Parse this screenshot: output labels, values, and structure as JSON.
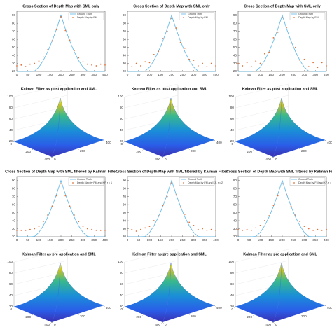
{
  "chart_data": [
    {
      "type": "line",
      "title": "Cross Section of Depth Map with SML only",
      "x": [
        0,
        20,
        40,
        60,
        80,
        100,
        120,
        140,
        160,
        180,
        200,
        220,
        240,
        260,
        280,
        300,
        320,
        340,
        360,
        380,
        400
      ],
      "xlim": [
        0,
        400
      ],
      "xticks": [
        0,
        50,
        100,
        150,
        200,
        250,
        300,
        350,
        400
      ],
      "ylim": [
        20,
        95
      ],
      "yticks": [
        20,
        30,
        40,
        50,
        60,
        70,
        80,
        90
      ],
      "legend": "upper right",
      "series": [
        {
          "name": "Ground Truth",
          "color": "#5ab4e6",
          "style": "line",
          "values": [
            20,
            20,
            20,
            20,
            20.4,
            25.3,
            33.7,
            44.6,
            57.8,
            73,
            90,
            73,
            57.8,
            44.6,
            33.7,
            25.3,
            20.4,
            20,
            20,
            20,
            20
          ]
        },
        {
          "name": "Depth Map by FM",
          "color": "#e0703a",
          "style": "dots",
          "values": [
            27,
            28,
            26,
            29,
            30,
            33,
            38,
            47,
            58,
            72,
            88,
            71,
            59,
            46,
            37,
            32,
            29,
            28,
            27,
            29,
            28
          ]
        }
      ]
    },
    {
      "type": "line",
      "title": "Cross Section of Depth Map with SML only",
      "x": [
        0,
        20,
        40,
        60,
        80,
        100,
        120,
        140,
        160,
        180,
        200,
        220,
        240,
        260,
        280,
        300,
        320,
        340,
        360,
        380,
        400
      ],
      "xlim": [
        0,
        400
      ],
      "xticks": [
        0,
        50,
        100,
        150,
        200,
        250,
        300,
        350,
        400
      ],
      "ylim": [
        20,
        95
      ],
      "yticks": [
        20,
        30,
        40,
        50,
        60,
        70,
        80,
        90
      ],
      "legend": "upper right",
      "series": [
        {
          "name": "Ground Truth",
          "color": "#5ab4e6",
          "style": "line",
          "values": [
            20,
            20,
            20,
            20,
            20.4,
            25.3,
            33.7,
            44.6,
            57.8,
            73,
            90,
            73,
            57.8,
            44.6,
            33.7,
            25.3,
            20.4,
            20,
            20,
            20,
            20
          ]
        },
        {
          "name": "Depth Map by FM",
          "color": "#e0703a",
          "style": "dots",
          "values": [
            29,
            26,
            30,
            27,
            32,
            31,
            41,
            45,
            61,
            70,
            86,
            74,
            56,
            49,
            35,
            34,
            27,
            30,
            26,
            30,
            27
          ]
        }
      ]
    },
    {
      "type": "line",
      "title": "Cross Section of Depth Map with SML only",
      "x": [
        0,
        20,
        40,
        60,
        80,
        100,
        120,
        140,
        160,
        180,
        200,
        220,
        240,
        260,
        280,
        300,
        320,
        340,
        360,
        380,
        400
      ],
      "xlim": [
        0,
        400
      ],
      "xticks": [
        0,
        50,
        100,
        150,
        200,
        250,
        300,
        350,
        400
      ],
      "ylim": [
        20,
        95
      ],
      "yticks": [
        20,
        30,
        40,
        50,
        60,
        70,
        80,
        90
      ],
      "legend": "upper right",
      "series": [
        {
          "name": "Ground Truth",
          "color": "#5ab4e6",
          "style": "line",
          "values": [
            20,
            20,
            20,
            20,
            20.4,
            25.3,
            33.7,
            44.6,
            57.8,
            73,
            90,
            73,
            57.8,
            44.6,
            33.7,
            25.3,
            20.4,
            20,
            20,
            20,
            20
          ]
        },
        {
          "name": "Depth Map by FM",
          "color": "#e0703a",
          "style": "dots",
          "values": [
            30,
            27,
            31,
            26,
            33,
            30,
            42,
            44,
            62,
            69,
            87,
            75,
            55,
            50,
            34,
            35,
            26,
            31,
            25,
            31,
            27
          ]
        }
      ]
    },
    {
      "type": "surface",
      "title": "Kalman Filter as post application and SML",
      "zlim": [
        20,
        100
      ],
      "zticks": [
        20,
        40,
        60,
        80,
        100
      ],
      "xticks": [
        0,
        200,
        400
      ],
      "yticks": [
        0,
        200,
        400
      ]
    },
    {
      "type": "surface",
      "title": "Kalman Filter as post application and SML",
      "zlim": [
        20,
        100
      ],
      "zticks": [
        20,
        40,
        60,
        80,
        100
      ],
      "xticks": [
        0,
        200,
        400
      ],
      "yticks": [
        0,
        200,
        400
      ]
    },
    {
      "type": "surface",
      "title": "Kalman Filter as post application and SML",
      "zlim": [
        20,
        100
      ],
      "zticks": [
        20,
        40,
        60,
        80,
        100
      ],
      "xticks": [
        0,
        200,
        400
      ],
      "yticks": [
        0,
        200,
        400
      ]
    },
    {
      "type": "line",
      "title": "Cross Section of Depth Map with SML filtered by Kalman Filter",
      "x": [
        0,
        20,
        40,
        60,
        80,
        100,
        120,
        140,
        160,
        180,
        200,
        220,
        240,
        260,
        280,
        300,
        320,
        340,
        360,
        380,
        400
      ],
      "xlim": [
        0,
        400
      ],
      "xticks": [
        0,
        50,
        100,
        150,
        200,
        250,
        300,
        350,
        400
      ],
      "ylim": [
        20,
        95
      ],
      "yticks": [
        20,
        30,
        40,
        50,
        60,
        70,
        80,
        90
      ],
      "legend": "upper right",
      "series": [
        {
          "name": "Ground Truth",
          "color": "#5ab4e6",
          "style": "line",
          "values": [
            20,
            20,
            20,
            20,
            20.4,
            25.3,
            33.7,
            44.6,
            57.8,
            73,
            90,
            73,
            57.8,
            44.6,
            33.7,
            25.3,
            20.4,
            20,
            20,
            20,
            20
          ]
        },
        {
          "name": "Depth Map by FM and KF, r = 1",
          "color": "#e0703a",
          "style": "dots",
          "values": [
            28,
            28,
            28,
            29,
            30,
            33,
            39,
            47,
            58,
            71,
            86,
            71,
            58,
            47,
            39,
            33,
            30,
            29,
            28,
            28,
            28
          ]
        }
      ]
    },
    {
      "type": "line",
      "title": "Cross Section of Depth Map with SML filtered by Kalman Filter",
      "x": [
        0,
        20,
        40,
        60,
        80,
        100,
        120,
        140,
        160,
        180,
        200,
        220,
        240,
        260,
        280,
        300,
        320,
        340,
        360,
        380,
        400
      ],
      "xlim": [
        0,
        400
      ],
      "xticks": [
        0,
        50,
        100,
        150,
        200,
        250,
        300,
        350,
        400
      ],
      "ylim": [
        20,
        95
      ],
      "yticks": [
        20,
        30,
        40,
        50,
        60,
        70,
        80,
        90
      ],
      "legend": "upper right",
      "series": [
        {
          "name": "Ground Truth",
          "color": "#5ab4e6",
          "style": "line",
          "values": [
            20,
            20,
            20,
            20,
            20.4,
            25.3,
            33.7,
            44.6,
            57.8,
            73,
            90,
            73,
            57.8,
            44.6,
            33.7,
            25.3,
            20.4,
            20,
            20,
            20,
            20
          ]
        },
        {
          "name": "Depth Map by FM and KF, r = 2",
          "color": "#e0703a",
          "style": "dots",
          "values": [
            28,
            29,
            27,
            29,
            31,
            33,
            40,
            46,
            59,
            70,
            87,
            72,
            57,
            48,
            38,
            34,
            29,
            30,
            28,
            29,
            28
          ]
        }
      ]
    },
    {
      "type": "line",
      "title": "Cross Section of Depth Map with SML filtered by Kalman Filter",
      "x": [
        0,
        20,
        40,
        60,
        80,
        100,
        120,
        140,
        160,
        180,
        200,
        220,
        240,
        260,
        280,
        300,
        320,
        340,
        360,
        380,
        400
      ],
      "xlim": [
        0,
        400
      ],
      "xticks": [
        0,
        50,
        100,
        150,
        200,
        250,
        300,
        350,
        400
      ],
      "ylim": [
        20,
        95
      ],
      "yticks": [
        20,
        30,
        40,
        50,
        60,
        70,
        80,
        90
      ],
      "legend": "upper right",
      "series": [
        {
          "name": "Ground Truth",
          "color": "#5ab4e6",
          "style": "line",
          "values": [
            20,
            20,
            20,
            20,
            20.4,
            25.3,
            33.7,
            44.6,
            57.8,
            73,
            90,
            73,
            57.8,
            44.6,
            33.7,
            25.3,
            20.4,
            20,
            20,
            20,
            20
          ]
        },
        {
          "name": "Depth Map by FM and KF, r = 3",
          "color": "#e0703a",
          "style": "dots",
          "values": [
            29,
            28,
            29,
            28,
            31,
            34,
            40,
            46,
            59,
            71,
            86,
            72,
            58,
            47,
            39,
            33,
            30,
            28,
            29,
            28,
            29
          ]
        }
      ]
    },
    {
      "type": "surface",
      "title": "Kalman Filter as pre application and SML",
      "zlim": [
        20,
        100
      ],
      "zticks": [
        20,
        40,
        60,
        80,
        100
      ],
      "xticks": [
        0,
        200,
        400
      ],
      "yticks": [
        0,
        200,
        400
      ]
    },
    {
      "type": "surface",
      "title": "Kalman Filter as pre application and SML",
      "zlim": [
        20,
        100
      ],
      "zticks": [
        20,
        40,
        60,
        80,
        100
      ],
      "xticks": [
        0,
        200,
        400
      ],
      "yticks": [
        0,
        200,
        400
      ]
    },
    {
      "type": "surface",
      "title": "Kalman Filter as pre application and SML",
      "zlim": [
        20,
        100
      ],
      "zticks": [
        20,
        40,
        60,
        80,
        100
      ],
      "xticks": [
        0,
        200,
        400
      ],
      "yticks": [
        0,
        200,
        400
      ]
    }
  ]
}
